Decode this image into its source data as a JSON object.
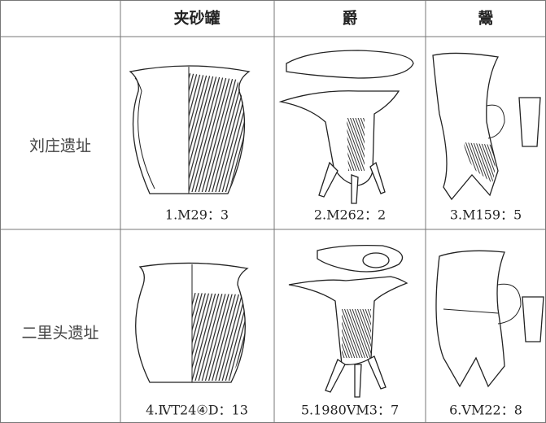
{
  "table": {
    "columns": [
      "夹砂罐",
      "爵",
      "鬶"
    ],
    "rows": [
      {
        "site": "刘庄遗址",
        "captions": [
          "1.M29：3",
          "2.M262：2",
          "3.M159：5"
        ]
      },
      {
        "site": "二里头遗址",
        "captions": [
          "4.ⅣT24④D：13",
          "5.1980ⅤM3：7",
          "6.ⅤM22：8"
        ]
      }
    ]
  }
}
